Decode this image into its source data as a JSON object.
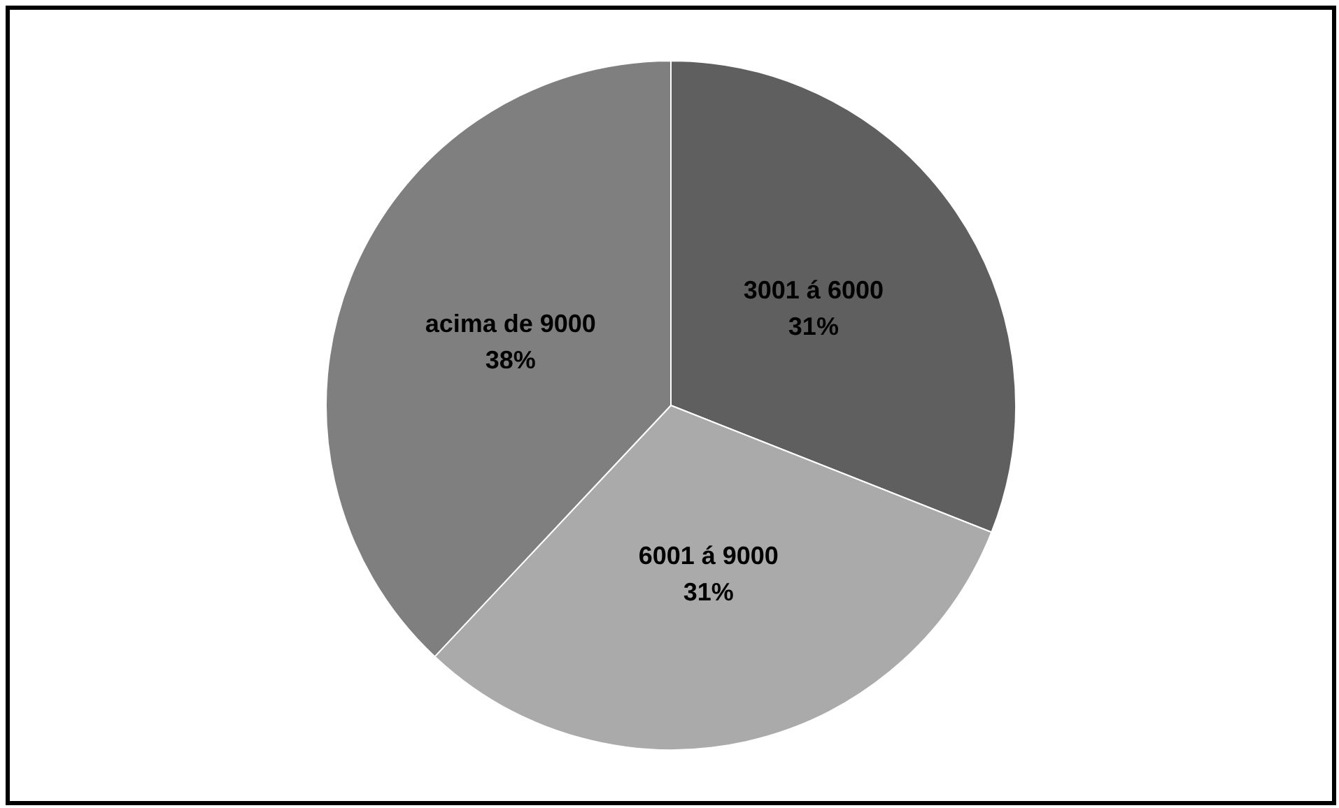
{
  "chart_data": {
    "type": "pie",
    "categories": [
      "3001 á 6000",
      "6001 á 9000",
      "acima de 9000"
    ],
    "values": [
      31,
      31,
      38
    ],
    "colors": [
      "#5f5f5f",
      "#aaaaaa",
      "#7f7f7f"
    ],
    "value_labels": [
      "31%",
      "31%",
      "38%"
    ],
    "legend": false
  }
}
